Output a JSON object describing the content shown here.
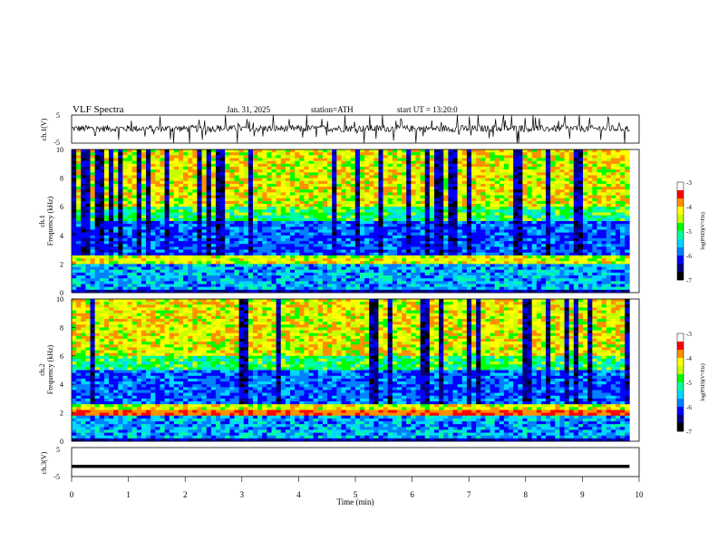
{
  "header": {
    "title": "VLF  Spectra",
    "date": "Jan. 31, 2025",
    "station": "station=ATH",
    "start": "start  UT  =   13:20:0"
  },
  "colors": {
    "spectrum": [
      "#000000",
      "#000080",
      "#0000ff",
      "#0080ff",
      "#00d8ff",
      "#00ffa0",
      "#00ff00",
      "#c8ff00",
      "#ffff00",
      "#ff9000",
      "#ff0000",
      "#ffffff"
    ]
  },
  "chart_data": [
    {
      "type": "line",
      "name": "ch1-voltage",
      "ylabel": "ch.1(V)",
      "ylim": [
        -5,
        5
      ],
      "yticks": [
        "5",
        "-5"
      ],
      "x_range_min": [
        0,
        9.83
      ],
      "baseline": 0.2,
      "noise": 1.2,
      "spikes": 60
    },
    {
      "type": "heatmap",
      "name": "ch1-spectrogram",
      "ylabel": "Frequency (kHz)",
      "channel": "ch.1",
      "ylim": [
        0,
        10
      ],
      "yticks": [
        "0",
        "2",
        "4",
        "6",
        "8",
        "10"
      ],
      "color_label": "log(PSD)(V²/Hz)",
      "color_range": [
        -7,
        -3
      ],
      "color_ticks": [
        "-3",
        "-4",
        "-5",
        "-6",
        "-7"
      ]
    },
    {
      "type": "heatmap",
      "name": "ch2-spectrogram",
      "ylabel": "Frequency (kHz)",
      "channel": "ch.2",
      "ylim": [
        0,
        10
      ],
      "yticks": [
        "0",
        "2",
        "4",
        "6",
        "8",
        "10"
      ],
      "color_label": "log(PSD)(V²/Hz)",
      "color_range": [
        -7,
        -3
      ],
      "color_ticks": [
        "-3",
        "-4",
        "-5",
        "-6",
        "-7"
      ]
    },
    {
      "type": "line",
      "name": "ch3-voltage",
      "ylabel": "ch.3(V)",
      "ylim": [
        -5,
        5
      ],
      "yticks": [
        "5",
        "-5"
      ],
      "x_range_min": [
        0,
        9.83
      ],
      "baseline": -1.5,
      "noise": 0.0,
      "spikes": 0
    }
  ],
  "xaxis": {
    "label": "Time  (min)",
    "xlim": [
      0,
      10
    ],
    "ticks": [
      "0",
      "1",
      "2",
      "3",
      "4",
      "5",
      "6",
      "7",
      "8",
      "9",
      "10"
    ]
  }
}
